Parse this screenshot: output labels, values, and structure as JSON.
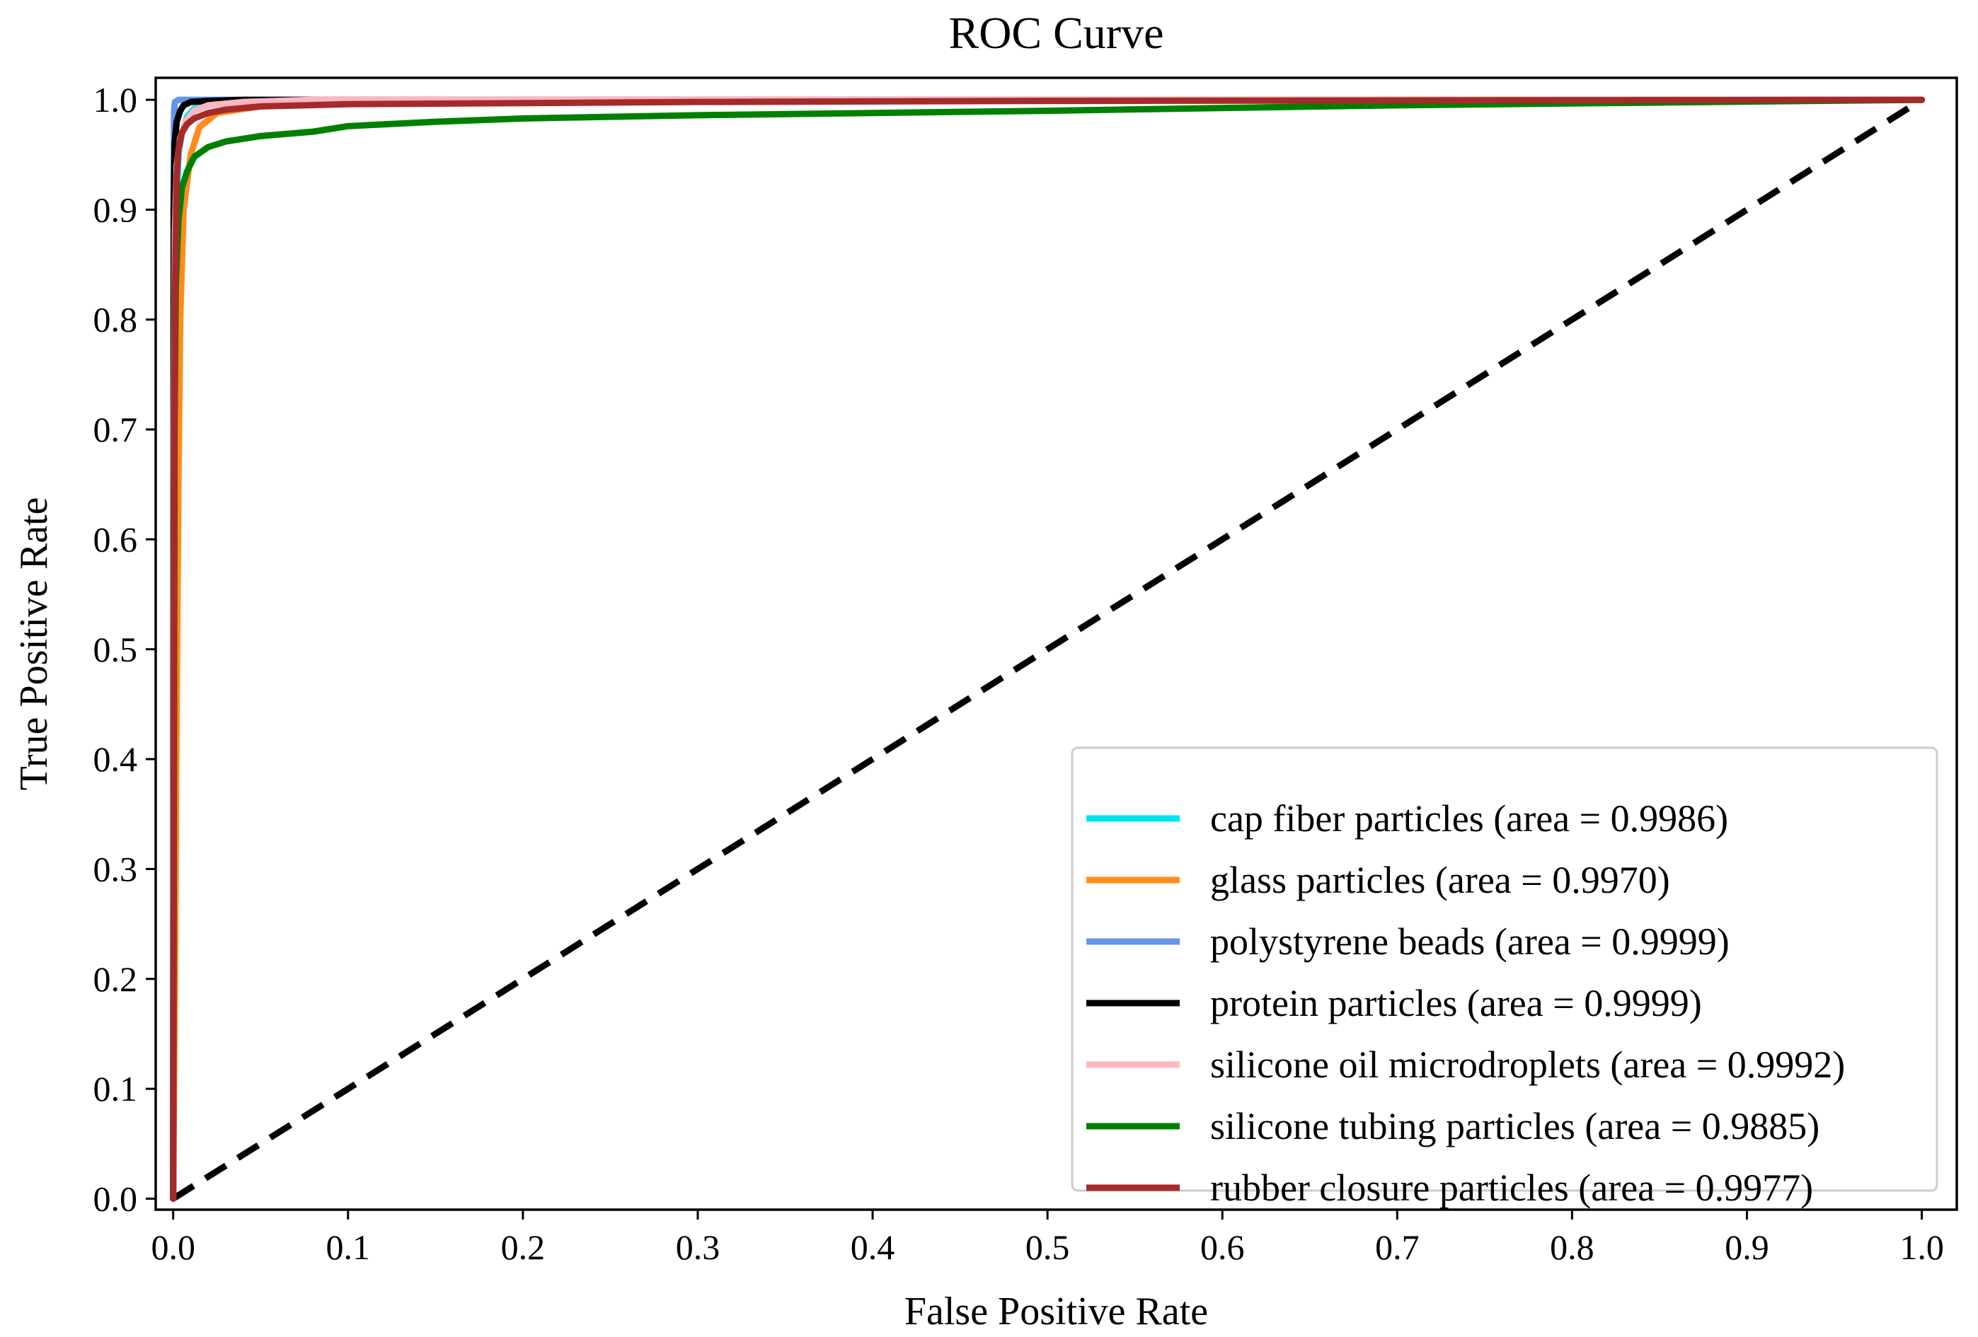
{
  "chart_data": {
    "type": "line",
    "title": "ROC Curve",
    "xlabel": "False Positive Rate",
    "ylabel": "True Positive Rate",
    "xlim": [
      -0.01,
      1.02
    ],
    "ylim": [
      -0.01,
      1.02
    ],
    "xticks": [
      "0.0",
      "0.1",
      "0.2",
      "0.3",
      "0.4",
      "0.5",
      "0.6",
      "0.7",
      "0.8",
      "0.9",
      "1.0"
    ],
    "yticks": [
      "0.0",
      "0.1",
      "0.2",
      "0.3",
      "0.4",
      "0.5",
      "0.6",
      "0.7",
      "0.8",
      "0.9",
      "1.0"
    ],
    "legend_location": "lower-right",
    "reference_line": {
      "name": "chance",
      "color": "#000000",
      "style": "dashed",
      "x": [
        0,
        1
      ],
      "y": [
        0,
        1
      ]
    },
    "series": [
      {
        "name": "cap fiber particles (area = 0.9986)",
        "color": "#00e5ee",
        "x": [
          0,
          0.0005,
          0.001,
          0.002,
          0.003,
          0.005,
          0.008,
          0.012,
          0.02,
          0.04,
          0.1,
          1.0
        ],
        "y": [
          0,
          0.6,
          0.8,
          0.9,
          0.95,
          0.97,
          0.985,
          0.992,
          0.996,
          0.998,
          1.0,
          1.0
        ]
      },
      {
        "name": "glass particles (area = 0.9970)",
        "color": "#ff8c1a",
        "x": [
          0,
          0.001,
          0.002,
          0.003,
          0.004,
          0.006,
          0.01,
          0.015,
          0.025,
          0.05,
          0.1,
          0.3,
          1.0
        ],
        "y": [
          0,
          0.2,
          0.45,
          0.65,
          0.8,
          0.9,
          0.95,
          0.975,
          0.988,
          0.994,
          0.997,
          0.999,
          1.0
        ]
      },
      {
        "name": "polystyrene beads (area = 0.9999)",
        "color": "#6495ed",
        "x": [
          0,
          0.0002,
          0.0005,
          0.001,
          0.003,
          0.01,
          1.0
        ],
        "y": [
          0,
          0.9,
          0.99,
          0.998,
          1.0,
          1.0,
          1.0
        ]
      },
      {
        "name": "protein particles  (area = 0.9999)",
        "color": "#000000",
        "x": [
          0,
          0.0003,
          0.0008,
          0.002,
          0.004,
          0.006,
          0.01,
          0.02,
          0.04,
          1.0
        ],
        "y": [
          0,
          0.9,
          0.96,
          0.98,
          0.99,
          0.995,
          0.998,
          0.999,
          1.0,
          1.0
        ]
      },
      {
        "name": "silicone oil microdroplets (area = 0.9992)",
        "color": "#ffb6c1",
        "x": [
          0,
          0.0005,
          0.001,
          0.002,
          0.004,
          0.007,
          0.012,
          0.02,
          0.04,
          0.08,
          1.0
        ],
        "y": [
          0,
          0.7,
          0.88,
          0.94,
          0.965,
          0.98,
          0.99,
          0.995,
          0.998,
          1.0,
          1.0
        ]
      },
      {
        "name": "silicone tubing particles (area = 0.9885)",
        "color": "#008000",
        "x": [
          0,
          0.0008,
          0.0015,
          0.003,
          0.005,
          0.008,
          0.012,
          0.02,
          0.03,
          0.05,
          0.08,
          0.1,
          0.15,
          0.2,
          0.3,
          0.5,
          0.7,
          1.0
        ],
        "y": [
          0,
          0.7,
          0.83,
          0.89,
          0.92,
          0.935,
          0.948,
          0.957,
          0.962,
          0.967,
          0.971,
          0.976,
          0.98,
          0.983,
          0.986,
          0.99,
          0.995,
          1.0
        ]
      },
      {
        "name": "rubber closure particles (area = 0.9977)",
        "color": "#a52a2a",
        "x": [
          0,
          0.0005,
          0.001,
          0.002,
          0.003,
          0.005,
          0.008,
          0.012,
          0.02,
          0.03,
          0.05,
          0.1,
          0.3,
          0.5,
          1.0
        ],
        "y": [
          0,
          0.6,
          0.82,
          0.93,
          0.955,
          0.97,
          0.978,
          0.983,
          0.988,
          0.991,
          0.994,
          0.996,
          0.998,
          0.999,
          1.0
        ]
      }
    ]
  }
}
